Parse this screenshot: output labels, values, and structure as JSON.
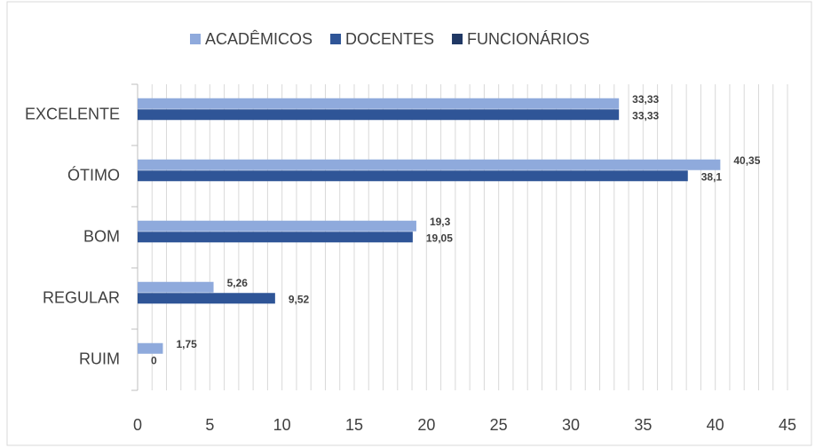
{
  "chart_data": {
    "type": "bar",
    "orientation": "horizontal",
    "categories": [
      "EXCELENTE",
      "ÓTIMO",
      "BOM",
      "REGULAR",
      "RUIM"
    ],
    "series": [
      {
        "name": "ACADÊMICOS",
        "color": "#8faadc",
        "values": [
          33.33,
          40.35,
          19.3,
          5.26,
          1.75
        ],
        "value_labels": [
          "33,33",
          "40,35",
          "19,3",
          "5,26",
          "1,75"
        ]
      },
      {
        "name": "DOCENTES",
        "color": "#2f5597",
        "values": [
          33.33,
          38.1,
          19.05,
          9.52,
          0
        ],
        "value_labels": [
          "33,33",
          "38,1",
          "19,05",
          "9,52",
          "0"
        ]
      },
      {
        "name": "FUNCIONÁRIOS",
        "color": "#203864",
        "values": [
          null,
          null,
          null,
          null,
          null
        ]
      }
    ],
    "xlim": [
      0,
      45
    ],
    "xticks": [
      0,
      5,
      10,
      15,
      20,
      25,
      30,
      35,
      40,
      45
    ],
    "minor_xticks": [
      0,
      1,
      2,
      3,
      4,
      5,
      6,
      7,
      8,
      9,
      10,
      11,
      12,
      13,
      14,
      15,
      16,
      17,
      18,
      19,
      20,
      21,
      22,
      23,
      24,
      25,
      26,
      27,
      28,
      29,
      30,
      31,
      32,
      33,
      34,
      35,
      36,
      37,
      38,
      39,
      40,
      41,
      42,
      43,
      44,
      45
    ],
    "grid": true,
    "legend": "top"
  }
}
